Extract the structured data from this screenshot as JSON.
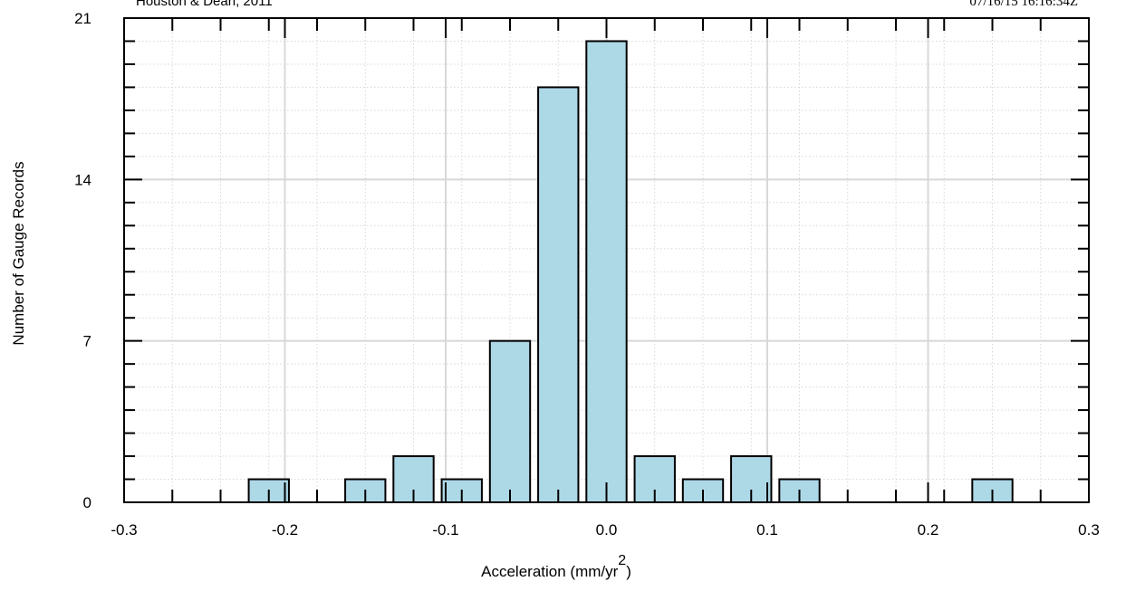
{
  "header": {
    "source": "Houston & Dean, 2011",
    "timestamp": "07/16/15 16:16:34Z"
  },
  "chart_data": {
    "type": "bar",
    "xlabel": "Acceleration (mm/yr",
    "xlabel_superscript": "2",
    "xlabel_close": ")",
    "ylabel": "Number of Gauge Records",
    "xlim": [
      -0.3,
      0.3
    ],
    "ylim": [
      0,
      21
    ],
    "x_ticks": [
      "-0.3",
      "-0.2",
      "-0.1",
      "0.0",
      "0.1",
      "0.2",
      "0.3"
    ],
    "y_ticks": [
      "0",
      "7",
      "14",
      "21"
    ],
    "grid": true,
    "bin_width": 0.03,
    "bar_width": 0.025,
    "bars": [
      {
        "x": -0.21,
        "value": 1
      },
      {
        "x": -0.15,
        "value": 1
      },
      {
        "x": -0.12,
        "value": 2
      },
      {
        "x": -0.09,
        "value": 1
      },
      {
        "x": -0.06,
        "value": 7
      },
      {
        "x": -0.03,
        "value": 18
      },
      {
        "x": 0.0,
        "value": 20
      },
      {
        "x": 0.03,
        "value": 2
      },
      {
        "x": 0.06,
        "value": 1
      },
      {
        "x": 0.09,
        "value": 2
      },
      {
        "x": 0.12,
        "value": 1
      },
      {
        "x": 0.24,
        "value": 1
      }
    ],
    "colors": {
      "bar_fill": "#add8e6",
      "bar_stroke": "#000000",
      "grid_major": "#d8d8d8",
      "grid_minor": "#d8d8d8"
    }
  }
}
